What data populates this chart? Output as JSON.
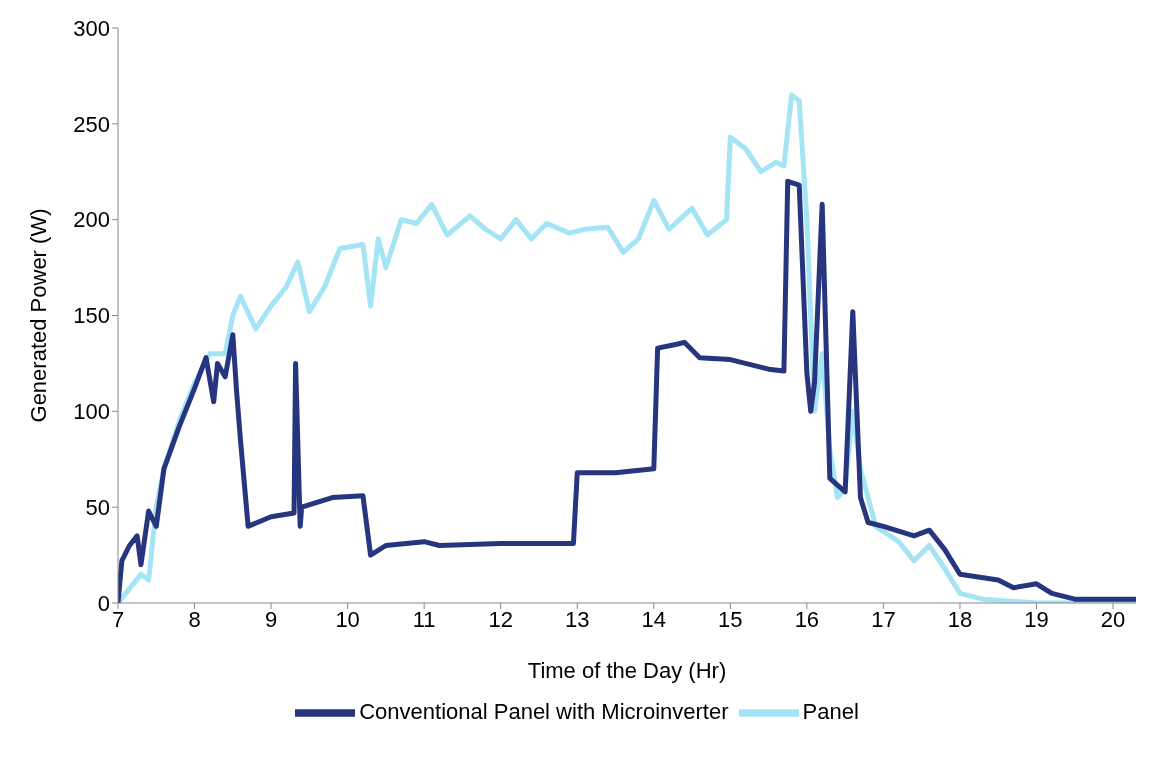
{
  "chart_data": {
    "type": "line",
    "xlabel": "Time of the Day (Hr)",
    "ylabel": "Generated Power (W)",
    "xlim": [
      7,
      20.3
    ],
    "xticks": [
      7,
      8,
      9,
      10,
      11,
      12,
      13,
      14,
      15,
      16,
      17,
      18,
      19,
      20
    ],
    "ylim": [
      0,
      300
    ],
    "yticks": [
      0,
      50,
      100,
      150,
      200,
      250,
      300
    ],
    "grid": false,
    "legend": "bottom",
    "marker": "none",
    "line_style": "solid",
    "series": [
      {
        "name": "Panel",
        "color": "#a3e4f5",
        "x": [
          7.0,
          7.2,
          7.3,
          7.4,
          7.5,
          7.6,
          7.8,
          8.0,
          8.2,
          8.4,
          8.5,
          8.6,
          8.8,
          9.0,
          9.2,
          9.35,
          9.5,
          9.7,
          9.9,
          10.2,
          10.3,
          10.4,
          10.5,
          10.7,
          10.9,
          11.1,
          11.3,
          11.6,
          11.8,
          12.0,
          12.2,
          12.4,
          12.6,
          12.9,
          13.1,
          13.4,
          13.6,
          13.8,
          14.0,
          14.2,
          14.5,
          14.7,
          14.95,
          15.0,
          15.2,
          15.4,
          15.6,
          15.7,
          15.8,
          15.9,
          16.0,
          16.1,
          16.2,
          16.3,
          16.4,
          16.5,
          16.6,
          16.7,
          16.9,
          17.2,
          17.4,
          17.6,
          17.8,
          18.0,
          18.3,
          19.0,
          20.3
        ],
        "values": [
          0,
          10,
          15,
          12,
          50,
          70,
          95,
          115,
          130,
          130,
          150,
          160,
          143,
          155,
          165,
          178,
          152,
          165,
          185,
          187,
          155,
          190,
          175,
          200,
          198,
          208,
          192,
          202,
          195,
          190,
          200,
          190,
          198,
          193,
          195,
          196,
          183,
          190,
          210,
          195,
          206,
          192,
          200,
          243,
          237,
          225,
          230,
          228,
          265,
          262,
          200,
          100,
          130,
          80,
          55,
          60,
          100,
          70,
          40,
          32,
          22,
          30,
          18,
          5,
          2,
          0,
          0
        ]
      },
      {
        "name": "Conventional Panel with Microinverter",
        "color": "#27357f",
        "x": [
          7.0,
          7.05,
          7.15,
          7.25,
          7.3,
          7.4,
          7.5,
          7.6,
          7.8,
          8.0,
          8.15,
          8.25,
          8.3,
          8.4,
          8.5,
          8.55,
          8.6,
          8.7,
          9.0,
          9.3,
          9.32,
          9.38,
          9.4,
          9.8,
          10.2,
          10.3,
          10.5,
          11.0,
          11.2,
          12.0,
          12.95,
          13.0,
          13.5,
          14.0,
          14.05,
          14.3,
          14.4,
          14.6,
          15.0,
          15.5,
          15.7,
          15.75,
          15.9,
          16.0,
          16.05,
          16.1,
          16.2,
          16.3,
          16.5,
          16.6,
          16.7,
          16.8,
          17.0,
          17.4,
          17.6,
          17.8,
          18.0,
          18.5,
          18.7,
          19.0,
          19.2,
          19.5,
          20.3
        ],
        "values": [
          0,
          22,
          30,
          35,
          20,
          48,
          40,
          70,
          92,
          112,
          128,
          105,
          125,
          118,
          140,
          110,
          85,
          40,
          45,
          47,
          125,
          40,
          50,
          55,
          56,
          25,
          30,
          32,
          30,
          31,
          31,
          68,
          68,
          70,
          133,
          135,
          136,
          128,
          127,
          122,
          121,
          220,
          218,
          120,
          100,
          115,
          208,
          65,
          58,
          152,
          55,
          42,
          40,
          35,
          38,
          28,
          15,
          12,
          8,
          10,
          5,
          2,
          2
        ]
      }
    ]
  }
}
